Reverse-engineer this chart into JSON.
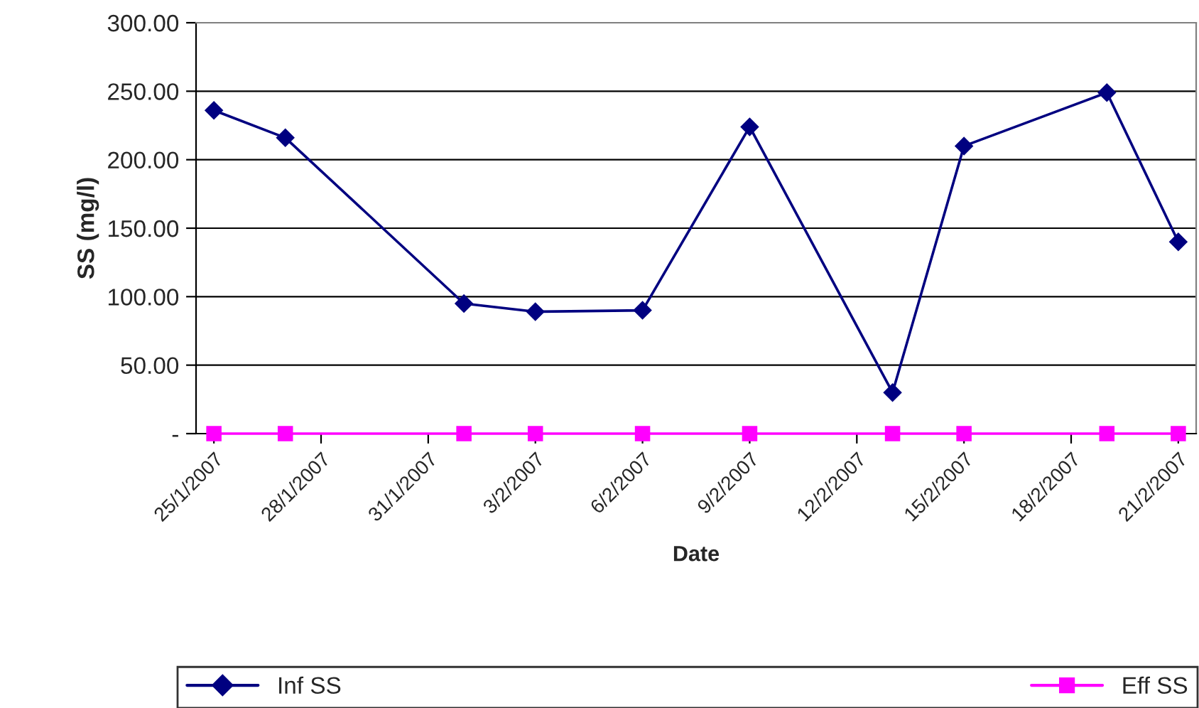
{
  "chart_data": {
    "type": "line",
    "xlabel": "Date",
    "ylabel": "SS (mg/l)",
    "x": [
      "2007-01-25",
      "2007-01-27",
      "2007-02-01",
      "2007-02-03",
      "2007-02-06",
      "2007-02-09",
      "2007-02-13",
      "2007-02-15",
      "2007-02-19",
      "2007-02-21"
    ],
    "series": [
      {
        "name": "Inf SS",
        "color": "#000080",
        "marker": "diamond",
        "values": [
          236,
          216,
          95,
          89,
          90,
          224,
          30,
          210,
          249,
          140
        ]
      },
      {
        "name": "Eff SS",
        "color": "#ff00ff",
        "marker": "square",
        "values": [
          0,
          0,
          0,
          0,
          0,
          0,
          0,
          0,
          0,
          0
        ]
      }
    ],
    "xlim": [
      "2007-01-24T12:00",
      "2007-02-21T12:00"
    ],
    "xticks": [
      {
        "value": "2007-01-25",
        "label": "25/1/2007"
      },
      {
        "value": "2007-01-28",
        "label": "28/1/2007"
      },
      {
        "value": "2007-01-31",
        "label": "31/1/2007"
      },
      {
        "value": "2007-02-03",
        "label": "3/2/2007"
      },
      {
        "value": "2007-02-06",
        "label": "6/2/2007"
      },
      {
        "value": "2007-02-09",
        "label": "9/2/2007"
      },
      {
        "value": "2007-02-12",
        "label": "12/2/2007"
      },
      {
        "value": "2007-02-15",
        "label": "15/2/2007"
      },
      {
        "value": "2007-02-18",
        "label": "18/2/2007"
      },
      {
        "value": "2007-02-21",
        "label": "21/2/2007"
      }
    ],
    "ylim": [
      0,
      300
    ],
    "yticks": [
      {
        "value": 0,
        "label": "-"
      },
      {
        "value": 50,
        "label": "50.00"
      },
      {
        "value": 100,
        "label": "100.00"
      },
      {
        "value": 150,
        "label": "150.00"
      },
      {
        "value": 200,
        "label": "200.00"
      },
      {
        "value": 250,
        "label": "250.00"
      },
      {
        "value": 300,
        "label": "300.00"
      }
    ],
    "grid": "y",
    "legend": "bottom",
    "line_style": "solid"
  }
}
